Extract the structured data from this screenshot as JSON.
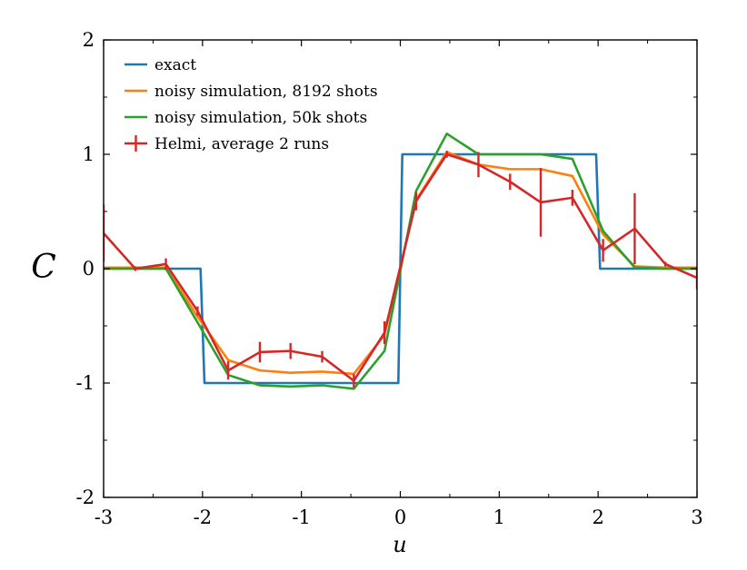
{
  "chart_data": {
    "type": "line",
    "title": "",
    "xlabel": "u",
    "ylabel": "C",
    "xlim": [
      -3,
      3
    ],
    "ylim": [
      -2,
      2
    ],
    "xticks": [
      -3,
      -2,
      -1,
      0,
      1,
      2,
      3
    ],
    "xtick_labels": [
      "-3",
      "-2",
      "-1",
      "0",
      "1",
      "2",
      "3"
    ],
    "yticks": [
      -2,
      -1,
      0,
      1,
      2
    ],
    "ytick_labels": [
      "-2",
      "-1",
      "0",
      "1",
      "2"
    ],
    "grid": false,
    "legend_position": "top-left",
    "series": [
      {
        "name": "exact",
        "color": "#1f77b4",
        "x": [
          -3,
          -2.02,
          -1.98,
          -0.02,
          0.02,
          1.98,
          2.02,
          3
        ],
        "y": [
          0,
          0,
          -1,
          -1,
          1,
          1,
          0,
          0
        ]
      },
      {
        "name": "noisy simulation, 8192 shots",
        "color": "#ff7f0e",
        "x": [
          -3,
          -2.37,
          -2.05,
          -1.74,
          -1.42,
          -1.11,
          -0.79,
          -0.47,
          -0.16,
          0.16,
          0.47,
          0.79,
          1.11,
          1.42,
          1.74,
          2.05,
          2.37,
          2.68,
          3
        ],
        "y": [
          0.01,
          0.01,
          -0.42,
          -0.8,
          -0.89,
          -0.91,
          -0.9,
          -0.92,
          -0.58,
          0.6,
          1.02,
          0.91,
          0.87,
          0.87,
          0.81,
          0.3,
          0.02,
          0.01,
          0.01
        ]
      },
      {
        "name": "noisy simulation, 50k shots",
        "color": "#2ca02c",
        "x": [
          -3,
          -2.37,
          -2.05,
          -1.74,
          -1.42,
          -1.11,
          -0.79,
          -0.47,
          -0.16,
          0.16,
          0.47,
          0.79,
          1.11,
          1.42,
          1.74,
          2.05,
          2.37,
          2.68,
          3
        ],
        "y": [
          0,
          0,
          -0.47,
          -0.93,
          -1.02,
          -1.03,
          -1.02,
          -1.05,
          -0.72,
          0.68,
          1.18,
          1.0,
          1.0,
          1.0,
          0.96,
          0.33,
          0.01,
          0.0,
          0.0
        ]
      },
      {
        "name": "Helmi, average 2 runs",
        "color": "#d62728",
        "x": [
          -3,
          -2.68,
          -2.37,
          -2.05,
          -1.74,
          -1.42,
          -1.11,
          -0.79,
          -0.47,
          -0.16,
          0.16,
          0.47,
          0.79,
          1.11,
          1.42,
          1.74,
          2.05,
          2.37,
          2.68,
          3
        ],
        "y": [
          0.31,
          0.0,
          0.04,
          -0.37,
          -0.89,
          -0.73,
          -0.72,
          -0.77,
          -0.98,
          -0.56,
          0.59,
          1.0,
          0.91,
          0.76,
          0.58,
          0.62,
          0.16,
          0.35,
          0.04,
          -0.08
        ],
        "err": [
          0.25,
          0.02,
          0.05,
          0.04,
          0.08,
          0.09,
          0.07,
          0.05,
          0.06,
          0.1,
          0.08,
          0.03,
          0.11,
          0.07,
          0.3,
          0.07,
          0.1,
          0.31,
          0.02,
          0.1
        ]
      }
    ]
  }
}
